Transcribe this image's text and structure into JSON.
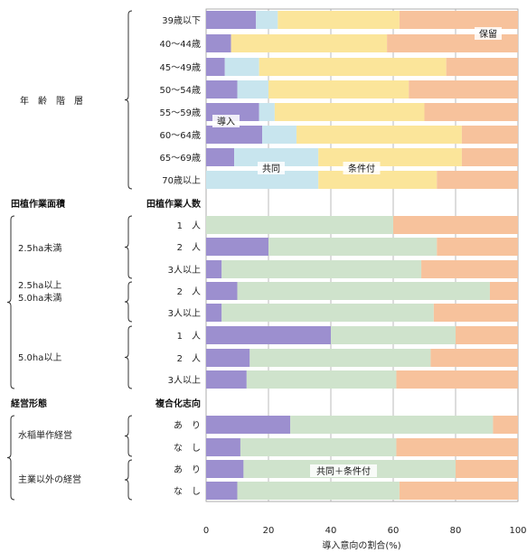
{
  "chart_data": {
    "type": "bar",
    "orientation": "horizontal",
    "stacked": true,
    "xlabel": "導入意向の割合(%)",
    "xlim": [
      0,
      100
    ],
    "xticks": [
      0,
      20,
      40,
      60,
      80,
      100
    ],
    "grid": true,
    "colors": {
      "導入": "#9c8fcf",
      "共同": "#c8e5ee",
      "条件付": "#fbe59a",
      "共同＋条件付": "#cfe3cc",
      "保留": "#f7c29c"
    },
    "sections": [
      {
        "title": "",
        "subtitle": ""
      },
      {
        "title": "田植作業面積",
        "subtitle": "田植作業人数"
      },
      {
        "title": "経営形態",
        "subtitle": "複合化志向"
      }
    ],
    "group_labels": [
      "年　齢　階　層",
      "2.5ha未満",
      "2.5ha以上\n5.0ha未満",
      "5.0ha以上",
      "水稲単作経営",
      "主業以外の経営"
    ],
    "annotations": [
      "保留",
      "導入",
      "共同",
      "条件付",
      "共同＋条件付"
    ],
    "rows": [
      {
        "label": "39歳以下",
        "values": {
          "導入": 16,
          "共同": 7,
          "条件付": 39,
          "保留": 38
        }
      },
      {
        "label": "40～44歳",
        "values": {
          "導入": 8,
          "共同": 0,
          "条件付": 50,
          "保留": 42
        }
      },
      {
        "label": "45～49歳",
        "values": {
          "導入": 6,
          "共同": 11,
          "条件付": 60,
          "保留": 23
        }
      },
      {
        "label": "50～54歳",
        "values": {
          "導入": 10,
          "共同": 10,
          "条件付": 45,
          "保留": 35
        }
      },
      {
        "label": "55～59歳",
        "values": {
          "導入": 17,
          "共同": 5,
          "条件付": 48,
          "保留": 30
        }
      },
      {
        "label": "60～64歳",
        "values": {
          "導入": 18,
          "共同": 11,
          "条件付": 53,
          "保留": 18
        }
      },
      {
        "label": "65～69歳",
        "values": {
          "導入": 9,
          "共同": 27,
          "条件付": 46,
          "保留": 18
        }
      },
      {
        "label": "70歳以上",
        "values": {
          "導入": 0,
          "共同": 36,
          "条件付": 38,
          "保留": 26
        }
      },
      {
        "label": "1　人",
        "values": {
          "導入": 0,
          "共同＋条件付": 60,
          "保留": 40
        }
      },
      {
        "label": "2　人",
        "values": {
          "導入": 20,
          "共同＋条件付": 54,
          "保留": 26
        }
      },
      {
        "label": "3人以上",
        "values": {
          "導入": 5,
          "共同＋条件付": 64,
          "保留": 31
        }
      },
      {
        "label": "2　人",
        "values": {
          "導入": 10,
          "共同＋条件付": 81,
          "保留": 9
        }
      },
      {
        "label": "3人以上",
        "values": {
          "導入": 5,
          "共同＋条件付": 68,
          "保留": 27
        }
      },
      {
        "label": "1　人",
        "values": {
          "導入": 40,
          "共同＋条件付": 40,
          "保留": 20
        }
      },
      {
        "label": "2　人",
        "values": {
          "導入": 14,
          "共同＋条件付": 58,
          "保留": 28
        }
      },
      {
        "label": "3人以上",
        "values": {
          "導入": 13,
          "共同＋条件付": 48,
          "保留": 39
        }
      },
      {
        "label": "あ　り",
        "values": {
          "導入": 27,
          "共同＋条件付": 65,
          "保留": 8
        }
      },
      {
        "label": "な　し",
        "values": {
          "導入": 11,
          "共同＋条件付": 50,
          "保留": 39
        }
      },
      {
        "label": "あ　り",
        "values": {
          "導入": 12,
          "共同＋条件付": 68,
          "保留": 20
        }
      },
      {
        "label": "な　し",
        "values": {
          "導入": 10,
          "共同＋条件付": 52,
          "保留": 38
        }
      }
    ]
  }
}
